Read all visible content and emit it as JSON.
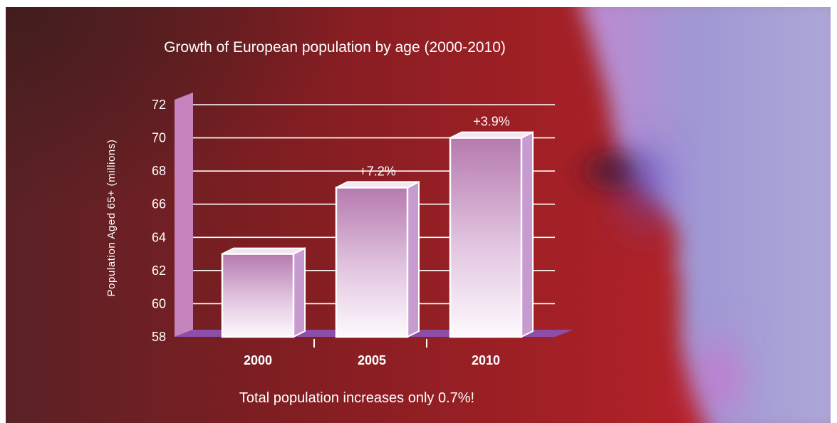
{
  "chart_data": {
    "type": "bar",
    "title": "Growth of European population by age (2000-2010)",
    "ylabel": "Population Aged 65+ (millions)",
    "xlabel": "",
    "categories": [
      "2000",
      "2005",
      "2010"
    ],
    "values": [
      63,
      67,
      70
    ],
    "data_labels": [
      "",
      "+7.2%",
      "+3.9%"
    ],
    "ylim": [
      58,
      72
    ],
    "yticks": [
      "58",
      "60",
      "62",
      "64",
      "66",
      "68",
      "70",
      "72"
    ],
    "grid": true,
    "footnote": "Total population increases only 0.7%!",
    "colors": {
      "bar_top": "#b67aae",
      "bar_bottom": "#fdf9fd",
      "bar_side": "#c79bd0",
      "floor": "#8c4ea6",
      "wall": "#cf8fcf",
      "grid": "#ffffff"
    }
  }
}
